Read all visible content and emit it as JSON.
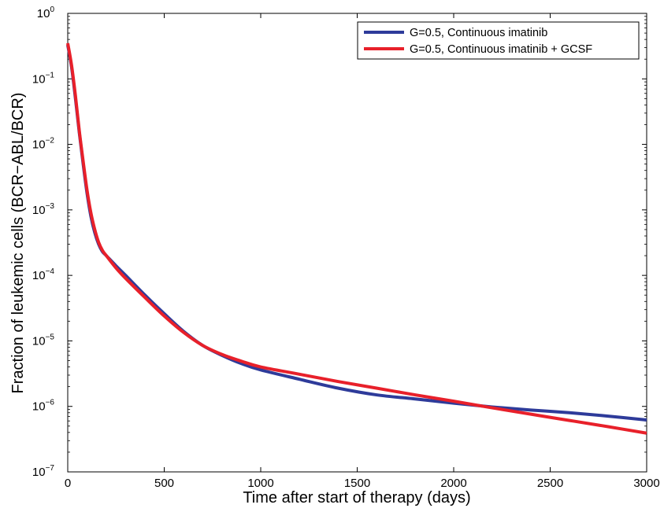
{
  "chart_data": {
    "type": "line",
    "title": "",
    "xlabel": "Time after start of therapy (days)",
    "ylabel": "Fraction of leukemic cells (BCR−ABL/BCR)",
    "xlim": [
      0,
      3000
    ],
    "ylim": [
      1e-07,
      1
    ],
    "yscale": "log",
    "grid": false,
    "legend_position": "top-right",
    "x_ticks": [
      "0",
      "500",
      "1000",
      "1500",
      "2000",
      "2500",
      "3000"
    ],
    "y_ticks": [
      {
        "base": "10",
        "exp": "0"
      },
      {
        "base": "10",
        "exp": "−1"
      },
      {
        "base": "10",
        "exp": "−2"
      },
      {
        "base": "10",
        "exp": "−3"
      },
      {
        "base": "10",
        "exp": "−4"
      },
      {
        "base": "10",
        "exp": "−5"
      },
      {
        "base": "10",
        "exp": "−6"
      },
      {
        "base": "10",
        "exp": "−7"
      }
    ],
    "series": [
      {
        "name": "G=0.5, Continuous imatinib",
        "color": "#2e3b9a",
        "points": [
          [
            0,
            0.33
          ],
          [
            20,
            0.15
          ],
          [
            40,
            0.05
          ],
          [
            60,
            0.015
          ],
          [
            80,
            0.005
          ],
          [
            100,
            0.0018
          ],
          [
            120,
            0.0008
          ],
          [
            140,
            0.00045
          ],
          [
            160,
            0.0003
          ],
          [
            180,
            0.00023
          ],
          [
            200,
            0.0002
          ],
          [
            250,
            0.00014
          ],
          [
            300,
            0.0001
          ],
          [
            400,
            5e-05
          ],
          [
            500,
            2.6e-05
          ],
          [
            600,
            1.4e-05
          ],
          [
            700,
            8.5e-06
          ],
          [
            800,
            6e-06
          ],
          [
            900,
            4.5e-06
          ],
          [
            1000,
            3.6e-06
          ],
          [
            1200,
            2.6e-06
          ],
          [
            1400,
            1.9e-06
          ],
          [
            1600,
            1.5e-06
          ],
          [
            1800,
            1.3e-06
          ],
          [
            2000,
            1.12e-06
          ],
          [
            2200,
            9.8e-07
          ],
          [
            2400,
            8.8e-07
          ],
          [
            2600,
            8e-07
          ],
          [
            2800,
            7.1e-07
          ],
          [
            3000,
            6.2e-07
          ]
        ]
      },
      {
        "name": "G=0.5, Continuous imatinib + GCSF",
        "color": "#e8202a",
        "points": [
          [
            0,
            0.35
          ],
          [
            20,
            0.16
          ],
          [
            40,
            0.055
          ],
          [
            60,
            0.016
          ],
          [
            80,
            0.0055
          ],
          [
            100,
            0.002
          ],
          [
            120,
            0.0009
          ],
          [
            140,
            0.0005
          ],
          [
            160,
            0.00032
          ],
          [
            180,
            0.00024
          ],
          [
            200,
            0.0002
          ],
          [
            250,
            0.00013
          ],
          [
            300,
            9e-05
          ],
          [
            400,
            4.6e-05
          ],
          [
            500,
            2.4e-05
          ],
          [
            600,
            1.35e-05
          ],
          [
            700,
            8.5e-06
          ],
          [
            800,
            6.2e-06
          ],
          [
            900,
            4.9e-06
          ],
          [
            1000,
            4e-06
          ],
          [
            1200,
            3.1e-06
          ],
          [
            1400,
            2.4e-06
          ],
          [
            1600,
            1.9e-06
          ],
          [
            1800,
            1.5e-06
          ],
          [
            2000,
            1.2e-06
          ],
          [
            2200,
            9.5e-07
          ],
          [
            2400,
            7.6e-07
          ],
          [
            2600,
            6.1e-07
          ],
          [
            2800,
            4.9e-07
          ],
          [
            3000,
            3.9e-07
          ]
        ]
      }
    ]
  }
}
